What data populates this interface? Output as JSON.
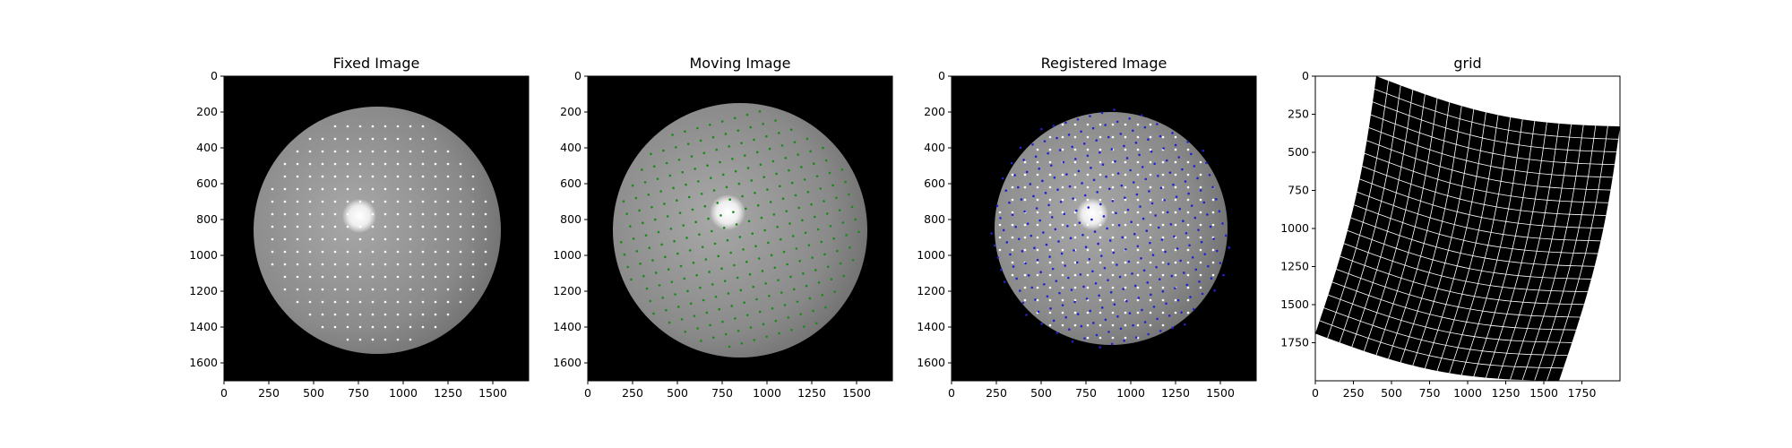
{
  "figure": {
    "colors": {
      "background": "#ffffff",
      "axes_frame": "#000000",
      "image_bg": "#000000",
      "fixed_dots": "#ffffff",
      "moving_dots": "#1a8a1a",
      "registered_dots": "#2222cc",
      "grid_lines": "#ffffff"
    }
  },
  "chart_data": [
    {
      "type": "image",
      "title": "Fixed Image",
      "xticks": [
        0,
        250,
        500,
        750,
        1000,
        1250,
        1500
      ],
      "yticks": [
        0,
        200,
        400,
        600,
        800,
        1000,
        1200,
        1400,
        1600
      ],
      "xlim": [
        0,
        1700
      ],
      "ylim": [
        1700,
        0
      ],
      "content": {
        "disc": {
          "cx": 855,
          "cy": 860,
          "r": 690,
          "fill": "#888888"
        },
        "optic_disc": {
          "cx": 755,
          "cy": 780,
          "r": 95
        },
        "landmarks": {
          "color": "#ffffff",
          "x0": 200,
          "y0": 280,
          "spacing": 70,
          "cols": 19,
          "rows": 18,
          "rotation_deg": 0,
          "clip_r": 640
        }
      }
    },
    {
      "type": "image",
      "title": "Moving Image",
      "xticks": [
        0,
        250,
        500,
        750,
        1000,
        1250,
        1500
      ],
      "yticks": [
        0,
        200,
        400,
        600,
        800,
        1000,
        1200,
        1400,
        1600
      ],
      "xlim": [
        0,
        1700
      ],
      "ylim": [
        1700,
        0
      ],
      "content": {
        "disc": {
          "cx": 850,
          "cy": 860,
          "r": 710,
          "fill": "#8c8c8c"
        },
        "optic_disc": {
          "cx": 780,
          "cy": 760,
          "r": 100
        },
        "landmarks": {
          "color": "#1a8a1a",
          "x0": 200,
          "y0": 240,
          "spacing": 72,
          "cols": 20,
          "rows": 19,
          "rotation_deg": -15,
          "clip_r": 680
        }
      }
    },
    {
      "type": "image",
      "title": "Registered Image",
      "xticks": [
        0,
        250,
        500,
        750,
        1000,
        1250,
        1500
      ],
      "yticks": [
        0,
        200,
        400,
        600,
        800,
        1000,
        1200,
        1400,
        1600
      ],
      "xlim": [
        0,
        1700
      ],
      "ylim": [
        1700,
        0
      ],
      "content": {
        "disc": {
          "cx": 890,
          "cy": 850,
          "r": 650,
          "fill": "#8a8a8a"
        },
        "optic_disc": {
          "cx": 785,
          "cy": 770,
          "r": 90
        },
        "landmarks": {
          "color": "#ffffff",
          "x0": 200,
          "y0": 200,
          "spacing": 70,
          "cols": 19,
          "rows": 19,
          "rotation_deg": 0,
          "clip_r": 640
        },
        "landmarks_2": {
          "color": "#2222cc",
          "x0": 160,
          "y0": 160,
          "spacing": 70,
          "cols": 20,
          "rows": 20,
          "rotation_deg": -15,
          "clip_r": 680
        }
      }
    },
    {
      "type": "deformation_grid",
      "title": "grid",
      "xticks": [
        0,
        250,
        500,
        750,
        1000,
        1250,
        1500,
        1750
      ],
      "yticks": [
        0,
        250,
        500,
        750,
        1000,
        1250,
        1500,
        1750
      ],
      "xlim": [
        0,
        2000
      ],
      "ylim": [
        2000,
        0
      ],
      "content": {
        "corners": [
          [
            400,
            0
          ],
          [
            2000,
            330
          ],
          [
            1600,
            2000
          ],
          [
            0,
            1690
          ]
        ],
        "cells": 20,
        "bend": 90
      }
    }
  ]
}
